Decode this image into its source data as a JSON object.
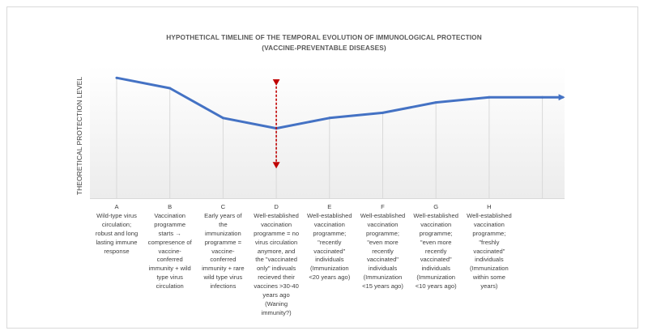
{
  "chart_data": {
    "type": "line",
    "title": "HYPOTHETICAL TIMELINE OF THE TEMPORAL EVOLUTION OF IMMUNOLOGICAL PROTECTION",
    "subtitle": "(VACCINE-PREVENTABLE DISEASES)",
    "xlabel": "",
    "ylabel": "THEORETICAL PROTECTION LEVEL",
    "ylim": [
      0,
      100
    ],
    "grid": "vertical",
    "y_ticks_shown": false,
    "categories": [
      "A",
      "B",
      "C",
      "D",
      "E",
      "F",
      "G",
      "H",
      ""
    ],
    "category_descriptions": [
      "Wild-type virus circulation; robust and long lasting immune response",
      "Vaccination programme starts → compresence of vaccine-conferred immunity + wild type virus circulation",
      "Early years of the immunization programme = vaccine-conferred immunity + rare wild type virus infections",
      "Well-established vaccination programme = no virus circulation anymore, and the \"vaccinated only\" indivuals recieved their vaccines >30-40 years ago (Waning immunity?)",
      "Well-established vaccination programme; \"recently vaccinated\" individuals (Immunization <20 years ago)",
      "Well-established vaccination programme; \"even more recently vaccinated\" individuals (Immunization <15 years ago)",
      "Well-established vaccination programme; \"even more recently vaccinated\" individuals (Immunization <10 years ago)",
      "Well-established vaccination programme; \"freshly vaccinated\" individuals (Immunization within some years)",
      ""
    ],
    "series": [
      {
        "name": "Theoretical protection level",
        "color": "#4472c4",
        "values": [
          93,
          85,
          62,
          54,
          62,
          66,
          74,
          78,
          78
        ],
        "end_arrow": true
      }
    ],
    "annotations": [
      {
        "type": "double-headed-dashed-arrow",
        "at_category": "D",
        "color": "#c00000",
        "from": 92,
        "to": 23,
        "meaning": "variability of protection level at D"
      }
    ]
  },
  "labels": {
    "title_line1": "HYPOTHETICAL TIMELINE OF THE TEMPORAL EVOLUTION OF IMMUNOLOGICAL PROTECTION",
    "title_line2": "(VACCINE-PREVENTABLE DISEASES)",
    "ylabel": "THEORETICAL PROTECTION LEVEL",
    "categories": [
      {
        "letter": "A",
        "lines": [
          "Wild-type virus",
          "circulation;",
          "robust and long",
          "lasting immune",
          "response"
        ]
      },
      {
        "letter": "B",
        "lines": [
          "Vaccination",
          "programme",
          "starts →",
          "compresence of",
          "vaccine-",
          "conferred",
          "immunity + wild",
          "type virus",
          "circulation"
        ]
      },
      {
        "letter": "C",
        "lines": [
          "Early years of",
          "the",
          "immunization",
          "programme =",
          "vaccine-",
          "conferred",
          "immunity + rare",
          "wild type virus",
          "infections"
        ]
      },
      {
        "letter": "D",
        "lines": [
          "Well-established",
          "vaccination",
          "programme = no",
          "virus circulation",
          "anymore, and",
          "the \"vaccinated",
          "only\" indivuals",
          "recieved their",
          "vaccines >30-40",
          "years ago",
          "(Waning",
          "immunity?)"
        ]
      },
      {
        "letter": "E",
        "lines": [
          "Well-established",
          "vaccination",
          "programme;",
          "\"recently",
          "vaccinated\"",
          "individuals",
          "(Immunization",
          "<20 years ago)"
        ]
      },
      {
        "letter": "F",
        "lines": [
          "Well-established",
          "vaccination",
          "programme;",
          "\"even more",
          "recently",
          "vaccinated\"",
          "individuals",
          "(Immunization",
          "<15 years ago)"
        ]
      },
      {
        "letter": "G",
        "lines": [
          "Well-established",
          "vaccination",
          "programme;",
          "\"even more",
          "recently",
          "vaccinated\"",
          "individuals",
          "(Immunization",
          "<10 years ago)"
        ]
      },
      {
        "letter": "H",
        "lines": [
          "Well-established",
          "vaccination",
          "programme;",
          "\"freshly",
          "vaccinated\"",
          "individuals",
          "(Immunization",
          "within some",
          "years)"
        ]
      }
    ]
  }
}
